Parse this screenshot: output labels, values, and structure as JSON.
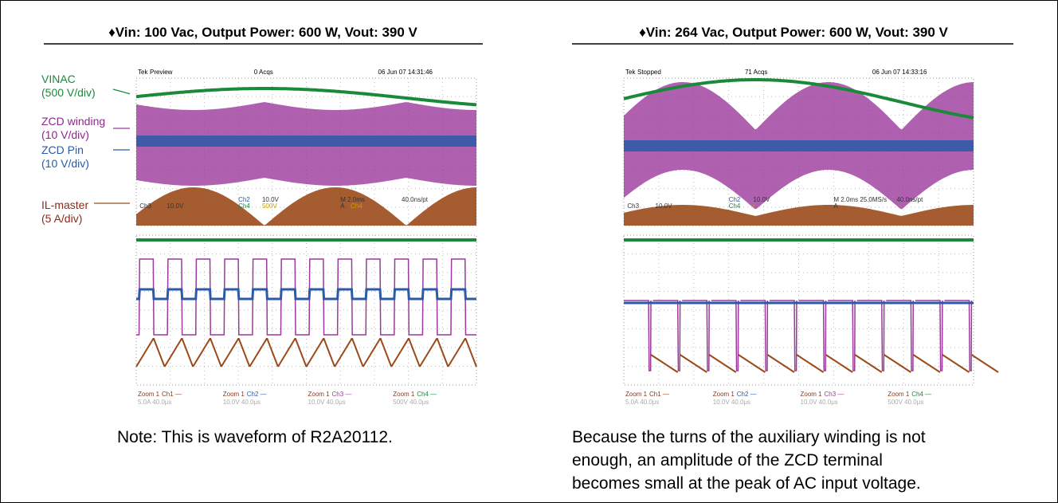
{
  "panels": [
    {
      "title": "♦Vin: 100 Vac, Output Power: 600 W, Vout: 390 V",
      "scope": {
        "header": [
          "Tek",
          "Preview",
          "0 Acqs",
          "06 Jun 07 14:31:46"
        ],
        "readouts": [
          "Ch2",
          "10.0V",
          "Ch4",
          "500V",
          "M 2.0ms",
          "40.0ns/pt",
          "A",
          "Ch4",
          "Ch3",
          "10.0V"
        ],
        "zoom": [
          {
            "name": "Zoom 1",
            "ch": "Ch1 —",
            "sub": "5.0A   40.0μs"
          },
          {
            "name": "Zoom 1",
            "ch": "Ch2 —",
            "sub": "10.0V   40.0μs"
          },
          {
            "name": "Zoom 1",
            "ch": "Ch3 —",
            "sub": "10.0V   40.0μs"
          },
          {
            "name": "Zoom 1",
            "ch": "Ch4 —",
            "sub": "500V   40.0μs"
          }
        ]
      },
      "annotations": [
        {
          "label": "VINAC",
          "scale": "(500 V/div)"
        },
        {
          "label": "ZCD winding",
          "scale": "(10 V/div)"
        },
        {
          "label": "ZCD Pin",
          "scale": "(10 V/div)"
        },
        {
          "label": "IL-master",
          "scale": "(5 A/div)"
        }
      ],
      "caption": [
        "Note: This is waveform of R2A20112."
      ]
    },
    {
      "title": "♦Vin: 264 Vac, Output Power: 600 W, Vout: 390 V",
      "scope": {
        "header": [
          "Tek",
          "Stopped",
          "71 Acqs",
          "06 Jun 07 14:33:16"
        ],
        "readouts": [
          "Ch2",
          "10.0V",
          "Ch4",
          "/",
          "M 2.0ms 25.0MS/s",
          "40.0ns/pt",
          "A",
          "",
          "Ch3",
          "10.0V"
        ],
        "zoom": [
          {
            "name": "Zoom 1",
            "ch": "Ch1 —",
            "sub": "5.0A   40.0μs"
          },
          {
            "name": "Zoom 1",
            "ch": "Ch2 —",
            "sub": "10.0V   40.0μs"
          },
          {
            "name": "Zoom 1",
            "ch": "Ch3 —",
            "sub": "10.0V   40.0μs"
          },
          {
            "name": "Zoom 1",
            "ch": "Ch4 —",
            "sub": "500V   40.0μs"
          }
        ]
      },
      "caption": [
        "Because the turns of the auxiliary winding is not",
        "enough, an amplitude of the ZCD terminal",
        "becomes small at the peak of AC input voltage."
      ]
    }
  ]
}
